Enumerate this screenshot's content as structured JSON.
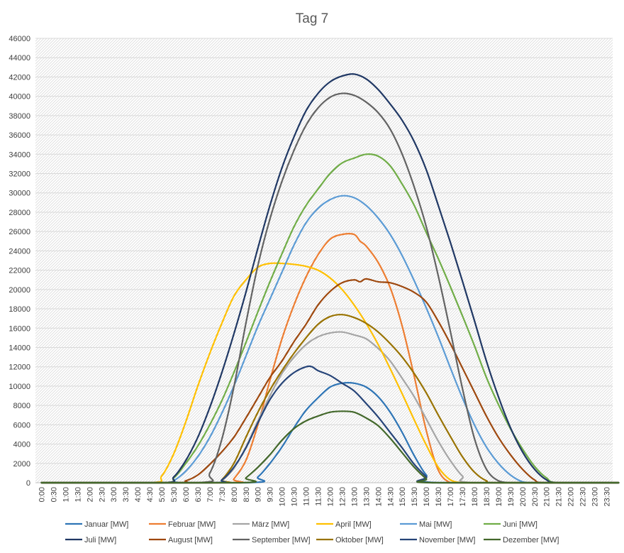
{
  "chart_data": {
    "type": "line",
    "title": "Tag 7",
    "xlabel": "",
    "ylabel": "",
    "ylim": [
      0,
      46000
    ],
    "y_ticks": [
      0,
      2000,
      4000,
      6000,
      8000,
      10000,
      12000,
      14000,
      16000,
      18000,
      20000,
      22000,
      24000,
      26000,
      28000,
      30000,
      32000,
      34000,
      36000,
      38000,
      40000,
      42000,
      44000,
      46000
    ],
    "x_tick_labels": [
      "0:00",
      "0:30",
      "1:00",
      "1:30",
      "2:00",
      "2:30",
      "3:00",
      "3:30",
      "4:00",
      "4:30",
      "5:00",
      "5:30",
      "6:00",
      "6:30",
      "7:00",
      "7:30",
      "8:00",
      "8:30",
      "9:00",
      "9:30",
      "10:00",
      "10:30",
      "11:00",
      "11:30",
      "12:00",
      "12:30",
      "13:00",
      "13:30",
      "14:00",
      "14:30",
      "15:00",
      "15:30",
      "16:00",
      "16:30",
      "17:00",
      "17:30",
      "18:00",
      "18:30",
      "19:00",
      "19:30",
      "20:00",
      "20:30",
      "21:00",
      "21:30",
      "22:00",
      "22:30",
      "23:00",
      "23:30"
    ],
    "grid": true,
    "legend_position": "bottom",
    "series": [
      {
        "name": "Januar [MW]",
        "color": "#2E75B6",
        "x": [
          0,
          8.5,
          9,
          9.5,
          10,
          10.5,
          11,
          11.5,
          12,
          12.5,
          13,
          13.5,
          14,
          14.5,
          15,
          15.5,
          16,
          16.5,
          24
        ],
        "y": [
          0,
          0,
          600,
          2000,
          3700,
          5700,
          7500,
          8800,
          9900,
          10300,
          10300,
          9900,
          8900,
          7300,
          5200,
          2800,
          800,
          0,
          0
        ]
      },
      {
        "name": "Februar [MW]",
        "color": "#ED7D31",
        "x": [
          0,
          7.75,
          8,
          8.5,
          9,
          9.5,
          10,
          10.5,
          11,
          11.5,
          12,
          12.5,
          13,
          13.25,
          13.5,
          14,
          14.5,
          15,
          15.5,
          16,
          16.5,
          17,
          17.5,
          24
        ],
        "y": [
          0,
          0,
          400,
          2300,
          6000,
          10600,
          14900,
          18400,
          21300,
          23600,
          25200,
          25700,
          25700,
          25000,
          24500,
          22800,
          20200,
          16200,
          11000,
          5400,
          1300,
          0,
          0,
          0
        ]
      },
      {
        "name": "März [MW]",
        "color": "#A5A5A5",
        "x": [
          0,
          7.25,
          7.5,
          8,
          8.5,
          9,
          9.5,
          10,
          10.5,
          11,
          11.5,
          12,
          12.5,
          13,
          13.5,
          14,
          14.5,
          15,
          15.5,
          16,
          16.5,
          17,
          17.5,
          18,
          24
        ],
        "y": [
          0,
          0,
          200,
          1500,
          3700,
          6400,
          9000,
          11300,
          13000,
          14300,
          15100,
          15500,
          15600,
          15300,
          14900,
          13900,
          12600,
          10800,
          8900,
          6600,
          4300,
          2300,
          700,
          0,
          0
        ]
      },
      {
        "name": "April [MW]",
        "color": "#FFC000",
        "x": [
          0,
          4.5,
          5,
          5.5,
          6,
          6.5,
          7,
          7.5,
          8,
          8.5,
          9,
          9.5,
          10,
          10.5,
          11,
          11.5,
          12,
          12.5,
          13,
          13.5,
          14,
          14.5,
          15,
          15.5,
          16,
          16.5,
          17,
          17.5,
          18,
          24
        ],
        "y": [
          0,
          0,
          700,
          3000,
          6300,
          10000,
          13400,
          16500,
          19300,
          21000,
          22300,
          22700,
          22700,
          22600,
          22400,
          22000,
          21200,
          20000,
          18400,
          16500,
          14300,
          11800,
          9200,
          6500,
          3900,
          1600,
          300,
          0,
          0,
          0
        ]
      },
      {
        "name": "Mai [MW]",
        "color": "#5B9BD5",
        "x": [
          0,
          5.25,
          5.5,
          6,
          6.5,
          7,
          7.5,
          8,
          8.5,
          9,
          9.5,
          10,
          10.5,
          11,
          11.5,
          12,
          12.5,
          13,
          13.5,
          14,
          14.5,
          15,
          15.5,
          16,
          16.5,
          17,
          17.5,
          18,
          18.5,
          19,
          19.5,
          20,
          20.5,
          21,
          24
        ],
        "y": [
          0,
          0,
          200,
          1200,
          2700,
          4700,
          7200,
          10000,
          13100,
          16200,
          19000,
          21800,
          24600,
          26900,
          28400,
          29300,
          29700,
          29500,
          28700,
          27400,
          25700,
          23500,
          20900,
          18100,
          15100,
          11900,
          8800,
          6000,
          3700,
          2000,
          800,
          100,
          0,
          0,
          0
        ]
      },
      {
        "name": "Juni [MW]",
        "color": "#70AD47",
        "x": [
          0,
          5,
          5.5,
          6,
          6.5,
          7,
          7.5,
          8,
          8.5,
          9,
          9.5,
          10,
          10.5,
          11,
          11.5,
          12,
          12.5,
          13,
          13.5,
          14,
          14.5,
          15,
          15.5,
          16,
          16.5,
          17,
          17.5,
          18,
          18.5,
          19,
          19.5,
          20,
          20.5,
          21,
          21.5,
          24
        ],
        "y": [
          0,
          0,
          500,
          2000,
          3800,
          6000,
          8500,
          11400,
          14500,
          17700,
          20800,
          23700,
          26500,
          28700,
          30400,
          32000,
          33100,
          33600,
          34000,
          33800,
          32800,
          30900,
          28700,
          25900,
          23200,
          20300,
          17300,
          14200,
          10900,
          8100,
          5600,
          3500,
          1700,
          500,
          0,
          0
        ]
      },
      {
        "name": "Juli [MW]",
        "color": "#203864",
        "x": [
          0,
          5,
          5.5,
          6,
          6.5,
          7,
          7.5,
          8,
          8.5,
          9,
          9.5,
          10,
          10.5,
          11,
          11.5,
          12,
          12.5,
          13,
          13.5,
          14,
          14.5,
          15,
          15.5,
          16,
          16.5,
          17,
          17.5,
          18,
          18.5,
          19,
          19.5,
          20,
          20.5,
          21,
          21.5,
          24
        ],
        "y": [
          0,
          0,
          600,
          2300,
          4700,
          7800,
          11400,
          15400,
          19700,
          24300,
          28700,
          32600,
          35800,
          38500,
          40300,
          41500,
          42100,
          42300,
          41800,
          40700,
          39200,
          37500,
          35300,
          32400,
          28700,
          24900,
          20900,
          16800,
          12600,
          8900,
          5700,
          3200,
          1400,
          300,
          0,
          0
        ]
      },
      {
        "name": "August [MW]",
        "color": "#9E480E",
        "x": [
          0,
          5.5,
          6,
          6.5,
          7,
          7.5,
          8,
          8.5,
          9,
          9.5,
          10,
          10.5,
          11,
          11.5,
          12,
          12.5,
          13,
          13.25,
          13.5,
          14,
          14.5,
          15,
          15.5,
          16,
          16.5,
          17,
          17.5,
          18,
          18.5,
          19,
          19.5,
          20,
          20.5,
          21,
          24
        ],
        "y": [
          0,
          0,
          200,
          800,
          1900,
          3200,
          4700,
          6700,
          8800,
          10900,
          12600,
          14600,
          16400,
          18400,
          19800,
          20700,
          21000,
          20800,
          21100,
          20800,
          20700,
          20300,
          19700,
          18700,
          16700,
          14400,
          11900,
          9400,
          6900,
          4700,
          2900,
          1400,
          300,
          0,
          0
        ]
      },
      {
        "name": "September [MW]",
        "color": "#636363",
        "x": [
          0,
          6.5,
          7,
          7.5,
          8,
          8.5,
          9,
          9.5,
          10,
          10.5,
          11,
          11.5,
          12,
          12.5,
          13,
          13.5,
          14,
          14.5,
          15,
          15.5,
          16,
          16.5,
          17,
          17.5,
          18,
          18.5,
          19,
          19.5,
          20,
          24
        ],
        "y": [
          0,
          0,
          1000,
          4500,
          9900,
          16500,
          22500,
          27300,
          31200,
          34400,
          37000,
          38800,
          39900,
          40300,
          40100,
          39400,
          38300,
          36600,
          34000,
          30600,
          26500,
          21400,
          15700,
          9800,
          4600,
          1400,
          200,
          0,
          0,
          0
        ]
      },
      {
        "name": "Oktober [MW]",
        "color": "#997300",
        "x": [
          0,
          7.25,
          7.5,
          8,
          8.5,
          9,
          9.5,
          10,
          10.5,
          11,
          11.5,
          12,
          12.5,
          13,
          13.5,
          14,
          14.5,
          15,
          15.5,
          16,
          16.5,
          17,
          17.5,
          18,
          18.5,
          19,
          24
        ],
        "y": [
          0,
          0,
          300,
          2000,
          4700,
          7300,
          9600,
          11600,
          13400,
          15000,
          16400,
          17200,
          17400,
          17100,
          16500,
          15600,
          14400,
          13000,
          11300,
          9300,
          7000,
          4800,
          2700,
          1100,
          200,
          0,
          0
        ]
      },
      {
        "name": "November [MW]",
        "color": "#264478",
        "x": [
          0,
          7,
          7.5,
          8,
          8.5,
          9,
          9.5,
          10,
          10.5,
          11,
          11.25,
          11.5,
          12,
          12.5,
          13,
          13.5,
          14,
          14.5,
          15,
          15.5,
          16,
          16.25,
          24
        ],
        "y": [
          0,
          0,
          300,
          1600,
          3600,
          6200,
          8600,
          10300,
          11400,
          12000,
          12000,
          11600,
          11100,
          10300,
          9500,
          8200,
          6800,
          5200,
          3600,
          1900,
          600,
          0,
          0
        ]
      },
      {
        "name": "Dezember [MW]",
        "color": "#43682B",
        "x": [
          0,
          8.25,
          8.5,
          9,
          9.5,
          10,
          10.5,
          11,
          11.5,
          12,
          12.5,
          13,
          13.5,
          14,
          14.5,
          15,
          15.5,
          16,
          16.25,
          24
        ],
        "y": [
          0,
          0,
          500,
          1600,
          2900,
          4400,
          5600,
          6400,
          6900,
          7300,
          7400,
          7300,
          6700,
          5900,
          4600,
          3100,
          1600,
          400,
          0,
          0
        ]
      }
    ]
  }
}
